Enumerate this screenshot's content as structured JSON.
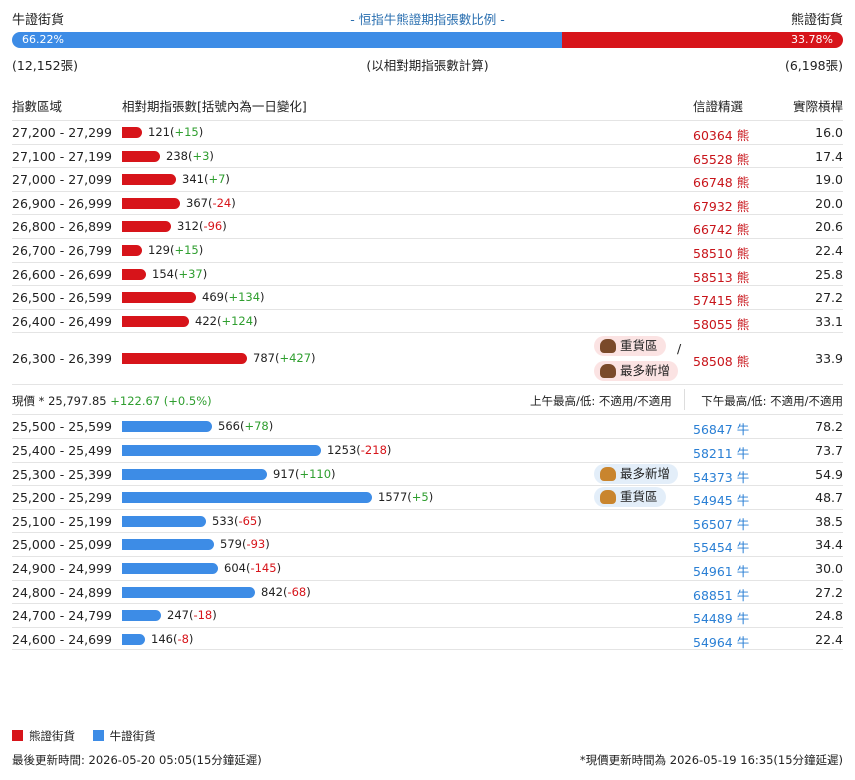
{
  "header": {
    "left_label": "牛證街貨",
    "title": "- 恒指牛熊證期指張數比例 -",
    "right_label": "熊證街貨"
  },
  "ratio": {
    "bull_pct": "66.22%",
    "bear_pct": "33.78%",
    "bull_fraction": 0.6622
  },
  "summary": {
    "bull_count": "(12,152張)",
    "note": "(以相對期指張數計算)",
    "bear_count": "(6,198張)"
  },
  "columns": {
    "range": "指數區域",
    "contracts": "相對期指張數[括號內為一日變化]",
    "top_warrant": "信證精選",
    "leverage": "實際槓桿"
  },
  "bear_rows": [
    {
      "range": "27,200 - 27,299",
      "value": 121,
      "val": "121",
      "chg": "+15",
      "code": "60364",
      "unit": "熊",
      "lev": "16.0"
    },
    {
      "range": "27,100 - 27,199",
      "value": 238,
      "val": "238",
      "chg": "+3",
      "code": "65528",
      "unit": "熊",
      "lev": "17.4"
    },
    {
      "range": "27,000 - 27,099",
      "value": 341,
      "val": "341",
      "chg": "+7",
      "code": "66748",
      "unit": "熊",
      "lev": "19.0"
    },
    {
      "range": "26,900 - 26,999",
      "value": 367,
      "val": "367",
      "chg": "-24",
      "code": "67932",
      "unit": "熊",
      "lev": "20.0"
    },
    {
      "range": "26,800 - 26,899",
      "value": 312,
      "val": "312",
      "chg": "-96",
      "code": "66742",
      "unit": "熊",
      "lev": "20.6"
    },
    {
      "range": "26,700 - 26,799",
      "value": 129,
      "val": "129",
      "chg": "+15",
      "code": "58510",
      "unit": "熊",
      "lev": "22.4"
    },
    {
      "range": "26,600 - 26,699",
      "value": 154,
      "val": "154",
      "chg": "+37",
      "code": "58513",
      "unit": "熊",
      "lev": "25.8"
    },
    {
      "range": "26,500 - 26,599",
      "value": 469,
      "val": "469",
      "chg": "+134",
      "code": "57415",
      "unit": "熊",
      "lev": "27.2"
    },
    {
      "range": "26,400 - 26,499",
      "value": 422,
      "val": "422",
      "chg": "+124",
      "code": "58055",
      "unit": "熊",
      "lev": "33.1"
    },
    {
      "range": "26,300 - 26,399",
      "value": 787,
      "val": "787",
      "chg": "+427",
      "code": "58508",
      "unit": "熊",
      "lev": "33.9"
    }
  ],
  "bear_tags": {
    "heavy": "重貨區",
    "slash": "/",
    "most_new": "最多新增"
  },
  "current": {
    "label": "現價 *",
    "price": "25,797.85",
    "change": "+122.67 (+0.5%)",
    "am": "上午最高/低: 不適用/不適用",
    "pm": "下午最高/低: 不適用/不適用"
  },
  "bull_rows": [
    {
      "range": "25,500 - 25,599",
      "value": 566,
      "val": "566",
      "chg": "+78",
      "code": "56847",
      "unit": "牛",
      "lev": "78.2"
    },
    {
      "range": "25,400 - 25,499",
      "value": 1253,
      "val": "1253",
      "chg": "-218",
      "code": "58211",
      "unit": "牛",
      "lev": "73.7"
    },
    {
      "range": "25,300 - 25,399",
      "value": 917,
      "val": "917",
      "chg": "+110",
      "code": "54373",
      "unit": "牛",
      "lev": "54.9"
    },
    {
      "range": "25,200 - 25,299",
      "value": 1577,
      "val": "1577",
      "chg": "+5",
      "code": "54945",
      "unit": "牛",
      "lev": "48.7"
    },
    {
      "range": "25,100 - 25,199",
      "value": 533,
      "val": "533",
      "chg": "-65",
      "code": "56507",
      "unit": "牛",
      "lev": "38.5"
    },
    {
      "range": "25,000 - 25,099",
      "value": 579,
      "val": "579",
      "chg": "-93",
      "code": "55454",
      "unit": "牛",
      "lev": "34.4"
    },
    {
      "range": "24,900 - 24,999",
      "value": 604,
      "val": "604",
      "chg": "-145",
      "code": "54961",
      "unit": "牛",
      "lev": "30.0"
    },
    {
      "range": "24,800 - 24,899",
      "value": 842,
      "val": "842",
      "chg": "-68",
      "code": "68851",
      "unit": "牛",
      "lev": "27.2"
    },
    {
      "range": "24,700 - 24,799",
      "value": 247,
      "val": "247",
      "chg": "-18",
      "code": "54489",
      "unit": "牛",
      "lev": "24.8"
    },
    {
      "range": "24,600 - 24,699",
      "value": 146,
      "val": "146",
      "chg": "-8",
      "code": "54964",
      "unit": "牛",
      "lev": "22.4"
    }
  ],
  "bull_tags": {
    "most_new": "最多新增",
    "heavy": "重貨區"
  },
  "legend": {
    "bear": "熊證街貨",
    "bull": "牛證街貨"
  },
  "footer": {
    "updated": "最後更新時間: 2026-05-20 05:05(15分鐘延遲)",
    "price_time": "*現價更新時間為 2026-05-19 16:35(15分鐘延遲)"
  },
  "colors": {
    "bear": "#d7141a",
    "bull": "#3d8ce6"
  }
}
